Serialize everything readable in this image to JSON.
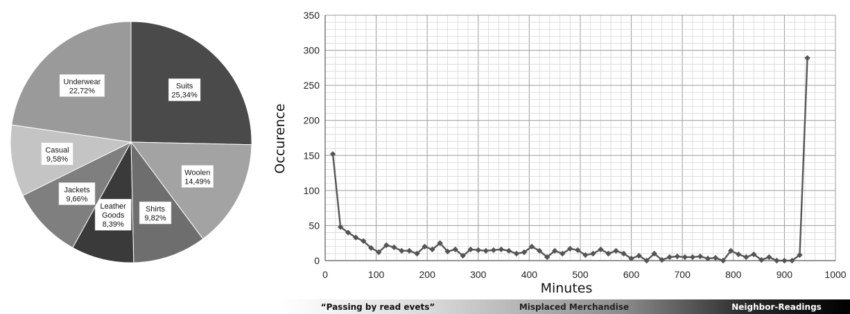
{
  "chart_data": [
    {
      "type": "pie",
      "slices": [
        {
          "label": "Suits",
          "percent_label": "25,34%",
          "value": 25.34,
          "color": "#4a4a4a"
        },
        {
          "label": "Woolen",
          "percent_label": "14,49%",
          "value": 14.49,
          "color": "#a3a3a3"
        },
        {
          "label": "Shirts",
          "percent_label": "9,82%",
          "value": 9.82,
          "color": "#6e6e6e"
        },
        {
          "label": "Leather Goods",
          "percent_label": "8,39%",
          "value": 8.39,
          "color": "#3a3a3a"
        },
        {
          "label": "Jackets",
          "percent_label": "9,66%",
          "value": 9.66,
          "color": "#7f7f7f"
        },
        {
          "label": "Casual",
          "percent_label": "9,58%",
          "value": 9.58,
          "color": "#c4c4c4"
        },
        {
          "label": "Underwear",
          "percent_label": "22,72%",
          "value": 22.72,
          "color": "#9a9a9a"
        }
      ]
    },
    {
      "type": "line",
      "xlabel": "Minutes",
      "ylabel": "Occurence",
      "xlim": [
        0,
        1000
      ],
      "ylim": [
        0,
        350
      ],
      "x_ticks": [
        0,
        100,
        200,
        300,
        400,
        500,
        600,
        700,
        800,
        900,
        1000
      ],
      "y_ticks": [
        0,
        50,
        100,
        150,
        200,
        250,
        300,
        350
      ],
      "grid": true,
      "line_color": "#555555",
      "series": [
        {
          "x": [
            15,
            30,
            45,
            60,
            75,
            90,
            105,
            120,
            135,
            150,
            165,
            180,
            195,
            210,
            225,
            240,
            255,
            270,
            285,
            300,
            315,
            330,
            345,
            360,
            375,
            390,
            405,
            420,
            435,
            450,
            465,
            480,
            495,
            510,
            525,
            540,
            555,
            570,
            585,
            600,
            615,
            630,
            645,
            660,
            675,
            690,
            705,
            720,
            735,
            750,
            765,
            780,
            795,
            810,
            825,
            840,
            855,
            870,
            885,
            900,
            915,
            930,
            945
          ],
          "y": [
            152,
            48,
            40,
            33,
            28,
            18,
            12,
            22,
            19,
            14,
            14,
            10,
            20,
            16,
            25,
            13,
            16,
            7,
            16,
            15,
            14,
            15,
            16,
            14,
            10,
            12,
            20,
            14,
            5,
            14,
            10,
            17,
            15,
            8,
            10,
            16,
            10,
            14,
            10,
            3,
            7,
            0,
            10,
            1,
            5,
            6,
            5,
            5,
            6,
            3,
            4,
            0,
            14,
            9,
            5,
            9,
            1,
            5,
            0,
            0,
            0,
            8,
            289
          ]
        }
      ]
    }
  ],
  "bands": [
    {
      "label": "“Passing by read evets”",
      "color": "#111111"
    },
    {
      "label": "Misplaced Merchandise",
      "color": "#222222"
    },
    {
      "label": "Neighbor-Readings",
      "color": "#ffffff"
    }
  ]
}
